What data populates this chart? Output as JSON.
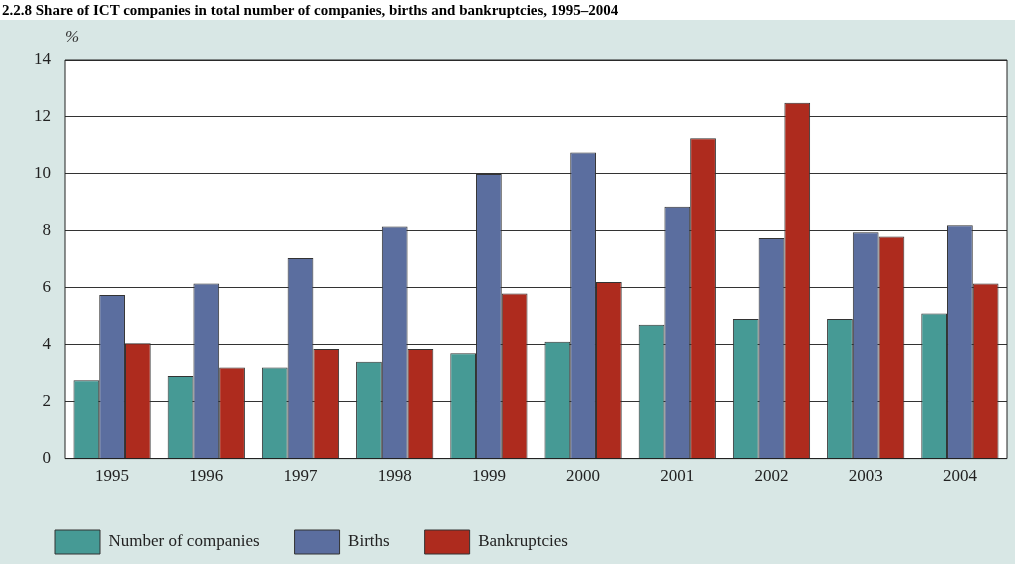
{
  "chart_data": {
    "type": "bar",
    "title": "2.2.8  Share of ICT companies in total number of companies, births and bankruptcies, 1995–2004",
    "ylabel": "%",
    "categories": [
      "1995",
      "1996",
      "1997",
      "1998",
      "1999",
      "2000",
      "2001",
      "2002",
      "2003",
      "2004"
    ],
    "series": [
      {
        "name": "Number of companies",
        "color": "#469a95",
        "values": [
          2.75,
          2.9,
          3.2,
          3.4,
          3.7,
          4.1,
          4.7,
          4.9,
          4.9,
          5.1
        ]
      },
      {
        "name": "Births",
        "color": "#5b6e9f",
        "values": [
          5.75,
          6.15,
          7.05,
          8.15,
          10.0,
          10.75,
          8.85,
          7.75,
          7.95,
          8.2
        ]
      },
      {
        "name": "Bankruptcies",
        "color": "#ae2b1e",
        "values": [
          4.05,
          3.2,
          3.85,
          3.85,
          5.8,
          6.2,
          11.25,
          12.5,
          7.8,
          6.15
        ]
      }
    ],
    "ylim": [
      0,
      14
    ],
    "yticks": [
      0,
      2,
      4,
      6,
      8,
      10,
      12,
      14
    ],
    "grid": "y",
    "legend": "bottom"
  }
}
